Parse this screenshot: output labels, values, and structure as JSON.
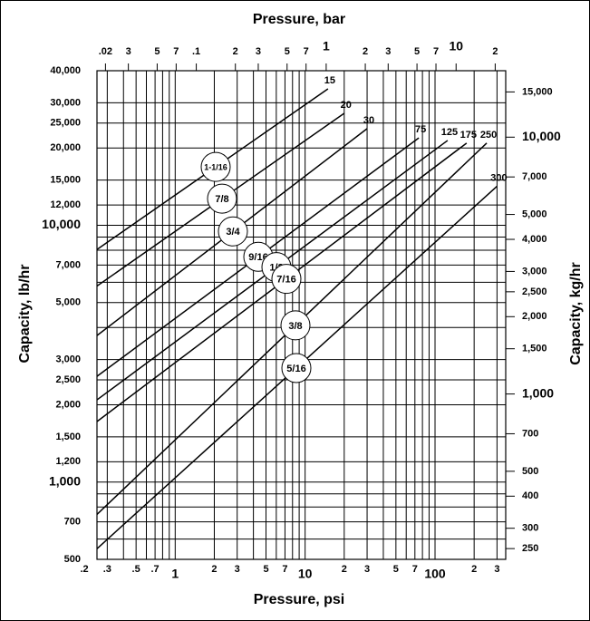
{
  "chart_data": {
    "type": "line",
    "xlabel": "Pressure, psi",
    "x2label": "Pressure, bar",
    "ylabel": "Capacity, lb/hr",
    "y2label": "Capacity, kg/hr",
    "xscale": "log",
    "yscale": "log",
    "xlim": [
      0.25,
      350
    ],
    "x2lim": [
      0.0172,
      24.1
    ],
    "ylim": [
      500,
      40000
    ],
    "y2lim": [
      227,
      18144
    ],
    "grid": true,
    "xticks": [
      {
        "value": 0.2,
        "label": ".2"
      },
      {
        "value": 0.3,
        "label": ".3"
      },
      {
        "value": 0.5,
        "label": ".5"
      },
      {
        "value": 0.7,
        "label": ".7"
      },
      1,
      2,
      3,
      5,
      7,
      10,
      {
        "value": 20,
        "label": "2"
      },
      {
        "value": 30,
        "label": "3"
      },
      {
        "value": 50,
        "label": "5"
      },
      {
        "value": 70,
        "label": "7"
      },
      100,
      {
        "value": 200,
        "label": "2"
      },
      {
        "value": 300,
        "label": "3"
      }
    ],
    "xgrid": [
      0.3,
      0.4,
      0.5,
      0.6,
      0.7,
      0.8,
      0.9,
      1,
      2,
      3,
      4,
      5,
      6,
      7,
      8,
      9,
      10,
      20,
      30,
      40,
      50,
      60,
      70,
      80,
      90,
      100,
      200,
      300
    ],
    "x2ticks": [
      {
        "value": 0.02,
        "label": ".02"
      },
      {
        "value": 0.03,
        "label": "3"
      },
      {
        "value": 0.05,
        "label": "5"
      },
      {
        "value": 0.07,
        "label": "7"
      },
      {
        "value": 0.1,
        "label": ".1"
      },
      {
        "value": 0.2,
        "label": "2"
      },
      {
        "value": 0.3,
        "label": "3"
      },
      {
        "value": 0.5,
        "label": "5"
      },
      {
        "value": 0.7,
        "label": "7"
      },
      1,
      2,
      3,
      5,
      7,
      10,
      {
        "value": 20,
        "label": "2"
      }
    ],
    "yticks": [
      500,
      700,
      {
        "value": 1000,
        "label": "1,000"
      },
      {
        "value": 1200,
        "label": "1,200"
      },
      {
        "value": 1500,
        "label": "1,500"
      },
      {
        "value": 2000,
        "label": "2,000"
      },
      {
        "value": 2500,
        "label": "2,500"
      },
      {
        "value": 3000,
        "label": "3,000"
      },
      {
        "value": 5000,
        "label": "5,000"
      },
      {
        "value": 7000,
        "label": "7,000"
      },
      {
        "value": 10000,
        "label": "10,000"
      },
      {
        "value": 12000,
        "label": "12,000"
      },
      {
        "value": 15000,
        "label": "15,000"
      },
      {
        "value": 20000,
        "label": "20,000"
      },
      {
        "value": 25000,
        "label": "25,000"
      },
      {
        "value": 30000,
        "label": "30,000"
      },
      {
        "value": 40000,
        "label": "40,000"
      }
    ],
    "ygrid": [
      600,
      800,
      900,
      4000,
      6000,
      8000,
      9000
    ],
    "y2ticks": [
      250,
      300,
      400,
      500,
      700,
      {
        "value": 1000,
        "label": "1,000"
      },
      {
        "value": 1500,
        "label": "1,500"
      },
      {
        "value": 2000,
        "label": "2,000"
      },
      {
        "value": 2500,
        "label": "2,500"
      },
      {
        "value": 3000,
        "label": "3,000"
      },
      {
        "value": 4000,
        "label": "4,000"
      },
      {
        "value": 5000,
        "label": "5,000"
      },
      {
        "value": 7000,
        "label": "7,000"
      },
      {
        "value": 10000,
        "label": "10,000"
      },
      {
        "value": 15000,
        "label": "15,000"
      }
    ],
    "color": "#000000",
    "series": [
      {
        "name": "15",
        "label": "1-1/16",
        "x": [
          0.25,
          15
        ],
        "values": [
          8050,
          34000
        ]
      },
      {
        "name": "20",
        "label": "7/8",
        "x": [
          0.25,
          20
        ],
        "values": [
          5800,
          27300
        ]
      },
      {
        "name": "30",
        "label": "3/4",
        "x": [
          0.25,
          30
        ],
        "values": [
          3720,
          23800
        ]
      },
      {
        "name": "75",
        "label": "9/16",
        "x": [
          0.25,
          75
        ],
        "values": [
          2580,
          21900
        ]
      },
      {
        "name": "125",
        "label": "1/2",
        "x": [
          0.25,
          125
        ],
        "values": [
          2090,
          21400
        ]
      },
      {
        "name": "175",
        "label": "7/16",
        "x": [
          0.25,
          175
        ],
        "values": [
          1720,
          20900
        ]
      },
      {
        "name": "250",
        "label": "3/8",
        "x": [
          0.25,
          250
        ],
        "values": [
          748,
          20900
        ]
      },
      {
        "name": "300",
        "label": "5/16",
        "x": [
          0.25,
          300
        ],
        "values": [
          550,
          14200
        ]
      }
    ]
  }
}
